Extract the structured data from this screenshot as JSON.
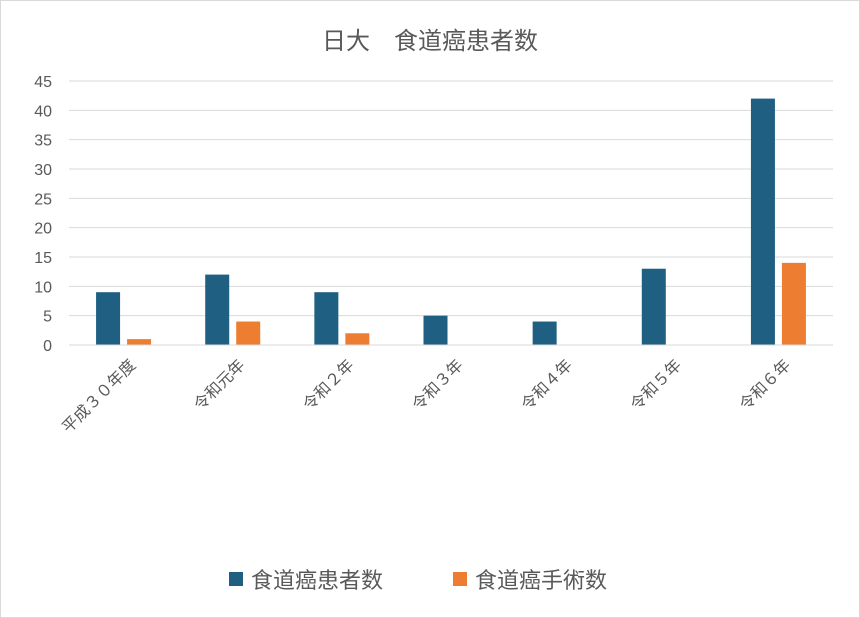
{
  "chart_data": {
    "type": "bar",
    "title": "日大　食道癌患者数",
    "categories": [
      "平成３０年度",
      "令和元年",
      "令和２年",
      "令和３年",
      "令和４年",
      "令和５年",
      "令和６年"
    ],
    "series": [
      {
        "name": "食道癌患者数",
        "values": [
          9,
          12,
          9,
          5,
          4,
          13,
          42
        ],
        "color": "#1f5f82"
      },
      {
        "name": "食道癌手術数",
        "values": [
          1,
          4,
          2,
          0,
          0,
          0,
          14
        ],
        "color": "#ed7d31"
      }
    ],
    "ylim": [
      0,
      45
    ],
    "yticks": [
      0,
      5,
      10,
      15,
      20,
      25,
      30,
      35,
      40,
      45
    ],
    "grid": true,
    "legend": "bottom"
  }
}
